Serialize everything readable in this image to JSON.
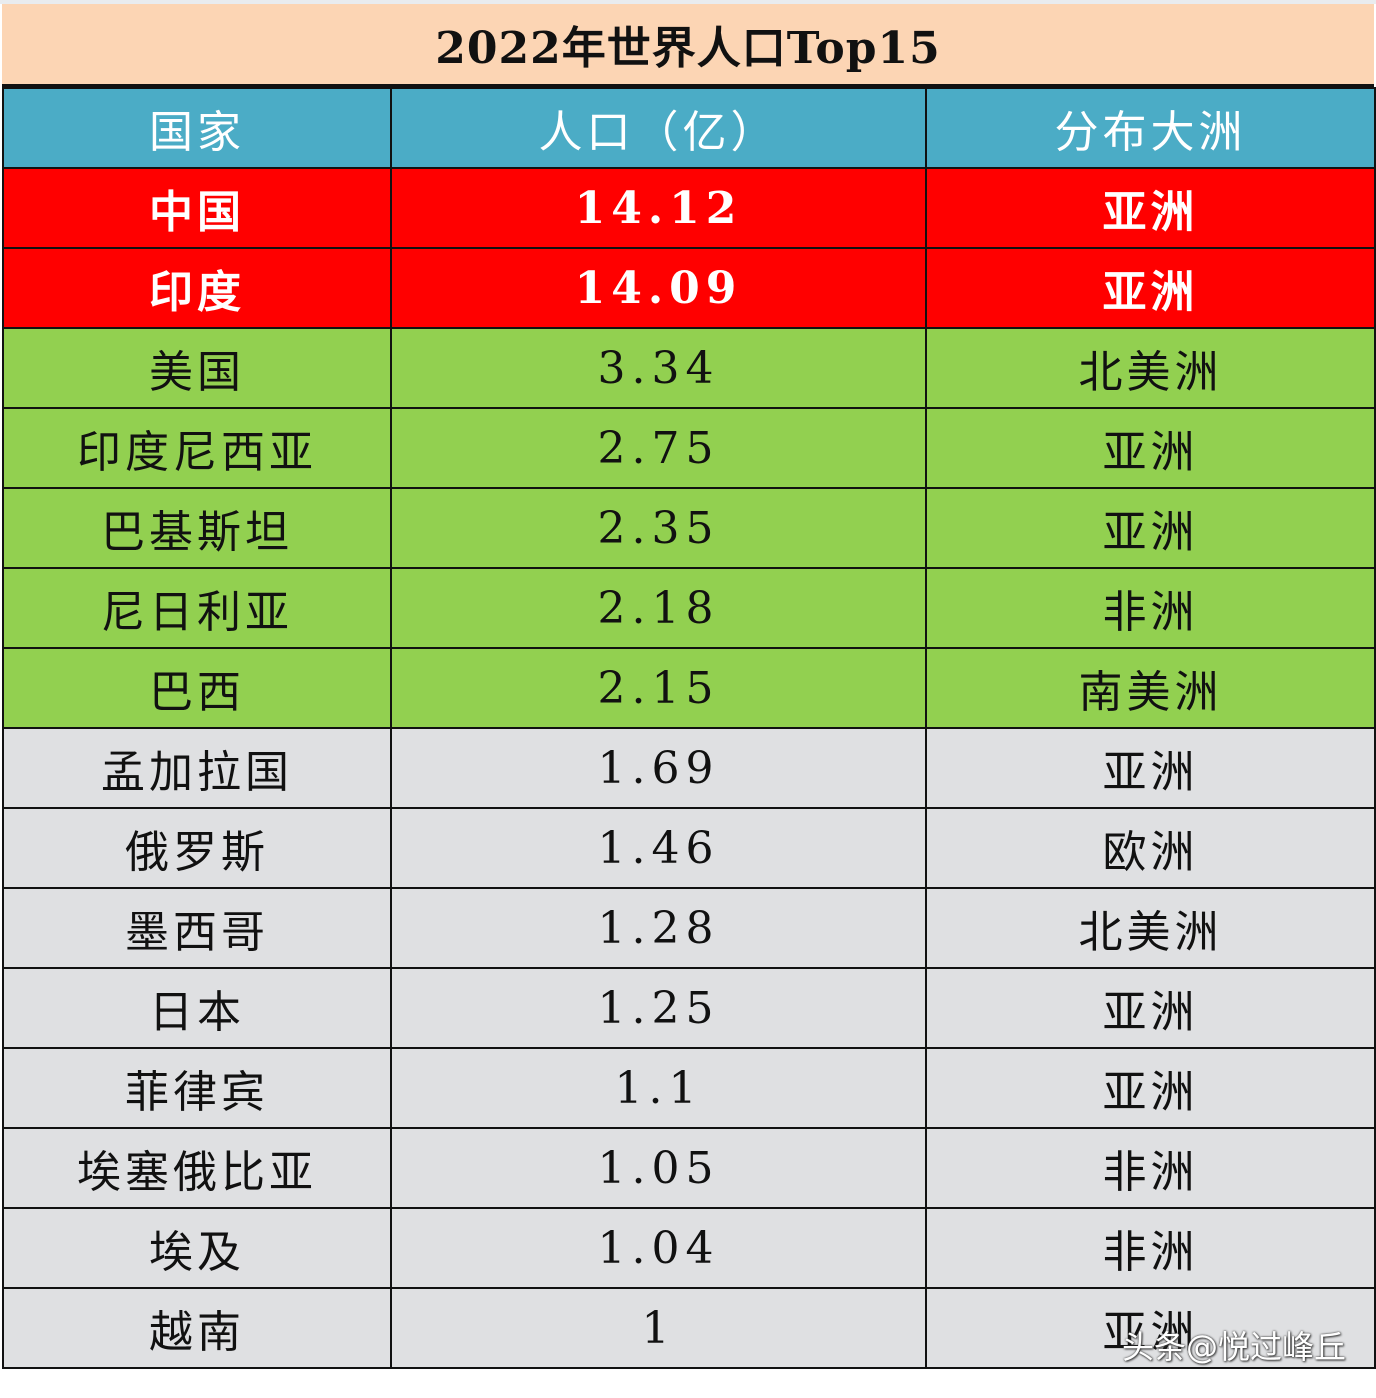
{
  "title": "2022年世界人口Top15",
  "columns": [
    "国家",
    "人口（亿）",
    "分布大洲"
  ],
  "colors": {
    "title_bg": "#fcd5b4",
    "header_bg": "#4bacc6",
    "red": "#ff0000",
    "green": "#92d050",
    "gray": "#dfe0e2"
  },
  "rows": [
    {
      "country": "中国",
      "population": "14.12",
      "continent": "亚洲",
      "tier": "red"
    },
    {
      "country": "印度",
      "population": "14.09",
      "continent": "亚洲",
      "tier": "red"
    },
    {
      "country": "美国",
      "population": "3.34",
      "continent": "北美洲",
      "tier": "green"
    },
    {
      "country": "印度尼西亚",
      "population": "2.75",
      "continent": "亚洲",
      "tier": "green"
    },
    {
      "country": "巴基斯坦",
      "population": "2.35",
      "continent": "亚洲",
      "tier": "green"
    },
    {
      "country": "尼日利亚",
      "population": "2.18",
      "continent": "非洲",
      "tier": "green"
    },
    {
      "country": "巴西",
      "population": "2.15",
      "continent": "南美洲",
      "tier": "green"
    },
    {
      "country": "孟加拉国",
      "population": "1.69",
      "continent": "亚洲",
      "tier": "gray"
    },
    {
      "country": "俄罗斯",
      "population": "1.46",
      "continent": "欧洲",
      "tier": "gray"
    },
    {
      "country": "墨西哥",
      "population": "1.28",
      "continent": "北美洲",
      "tier": "gray"
    },
    {
      "country": "日本",
      "population": "1.25",
      "continent": "亚洲",
      "tier": "gray"
    },
    {
      "country": "菲律宾",
      "population": "1.1",
      "continent": "亚洲",
      "tier": "gray"
    },
    {
      "country": "埃塞俄比亚",
      "population": "1.05",
      "continent": "非洲",
      "tier": "gray"
    },
    {
      "country": "埃及",
      "population": "1.04",
      "continent": "非洲",
      "tier": "gray"
    },
    {
      "country": "越南",
      "population": "1",
      "continent": "亚洲",
      "tier": "gray"
    }
  ],
  "watermark": "头条@悦过峰丘"
}
